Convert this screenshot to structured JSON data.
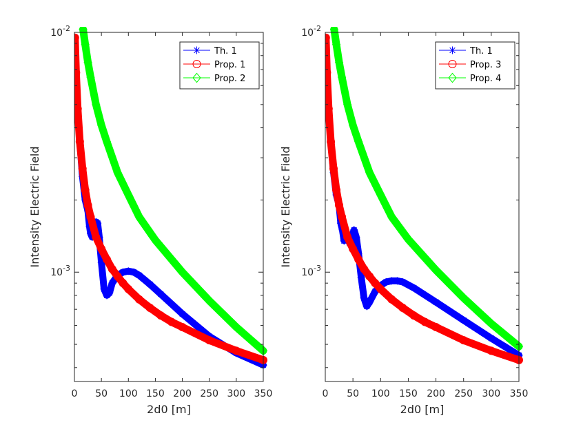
{
  "chart_data": [
    {
      "type": "line",
      "ylabel": "Intensity Electric Field",
      "xlabel": "2d0 [m]",
      "xlim": [
        0,
        350
      ],
      "ylim": [
        0.00035,
        0.01
      ],
      "yscale": "log",
      "xticks": [
        0,
        50,
        100,
        150,
        200,
        250,
        300,
        350
      ],
      "xtick_labels": [
        "0",
        "50",
        "100",
        "150",
        "200",
        "250",
        "300",
        "350"
      ],
      "ytick_labels": [
        {
          "value": 0.01,
          "base": "10",
          "exp": "-2"
        },
        {
          "value": 0.001,
          "base": "10",
          "exp": "-3"
        }
      ],
      "legend_placement": "top-right",
      "grid": false,
      "series": [
        {
          "name": "Th. 1",
          "color": "#0000ff",
          "marker": "asterisk",
          "x": [
            1,
            3,
            6,
            10,
            15,
            20,
            25,
            28,
            30,
            33,
            36,
            40,
            43,
            46,
            50,
            55,
            60,
            65,
            70,
            80,
            90,
            100,
            110,
            120,
            140,
            160,
            200,
            250,
            300,
            350
          ],
          "y": [
            0.0095,
            0.0068,
            0.0048,
            0.0035,
            0.0025,
            0.002,
            0.0018,
            0.00155,
            0.00145,
            0.0014,
            0.00155,
            0.00162,
            0.0016,
            0.0014,
            0.0011,
            0.00085,
            0.0008,
            0.00082,
            0.0009,
            0.00097,
            0.001,
            0.00101,
            0.001,
            0.00097,
            0.00089,
            0.00081,
            0.00067,
            0.00054,
            0.00046,
            0.00041
          ]
        },
        {
          "name": "Prop. 1",
          "color": "#ff0000",
          "marker": "circle",
          "x": [
            1,
            3,
            6,
            10,
            15,
            20,
            25,
            30,
            40,
            50,
            60,
            70,
            80,
            90,
            100,
            120,
            140,
            160,
            180,
            200,
            250,
            300,
            350
          ],
          "y": [
            0.0095,
            0.0068,
            0.0048,
            0.0035,
            0.0027,
            0.0022,
            0.0019,
            0.0017,
            0.0014,
            0.00125,
            0.00113,
            0.00103,
            0.00096,
            0.0009,
            0.00085,
            0.00077,
            0.00071,
            0.00066,
            0.00062,
            0.00059,
            0.00052,
            0.00047,
            0.00043
          ]
        },
        {
          "name": "Prop. 2",
          "color": "#00ff00",
          "marker": "diamond",
          "x": [
            16,
            20,
            25,
            30,
            40,
            50,
            60,
            80,
            100,
            120,
            150,
            200,
            250,
            300,
            350
          ],
          "y": [
            0.0103,
            0.0089,
            0.0075,
            0.0065,
            0.005,
            0.0041,
            0.0035,
            0.0026,
            0.0021,
            0.0017,
            0.00136,
            0.001,
            0.00076,
            0.00059,
            0.00047
          ]
        }
      ]
    },
    {
      "type": "line",
      "ylabel": "Intensity Electric Field",
      "xlabel": "2d0 [m]",
      "xlim": [
        0,
        350
      ],
      "ylim": [
        0.00035,
        0.01
      ],
      "yscale": "log",
      "xticks": [
        0,
        50,
        100,
        150,
        200,
        250,
        300,
        350
      ],
      "xtick_labels": [
        "0",
        "50",
        "100",
        "150",
        "200",
        "250",
        "300",
        "350"
      ],
      "ytick_labels": [
        {
          "value": 0.01,
          "base": "10",
          "exp": "-2"
        },
        {
          "value": 0.001,
          "base": "10",
          "exp": "-3"
        }
      ],
      "legend_placement": "top-right",
      "grid": false,
      "series": [
        {
          "name": "Th. 1",
          "color": "#0000ff",
          "marker": "asterisk",
          "x": [
            1,
            3,
            6,
            10,
            15,
            20,
            25,
            28,
            31,
            34,
            37,
            40,
            44,
            48,
            52,
            56,
            60,
            65,
            70,
            75,
            80,
            90,
            100,
            110,
            120,
            130,
            140,
            160,
            200,
            250,
            300,
            350
          ],
          "y": [
            0.0095,
            0.0068,
            0.0048,
            0.0035,
            0.0026,
            0.0021,
            0.0019,
            0.0016,
            0.0015,
            0.00135,
            0.00145,
            0.0014,
            0.00132,
            0.0014,
            0.0015,
            0.0014,
            0.0012,
            0.00095,
            0.00078,
            0.00072,
            0.00075,
            0.00083,
            0.00088,
            0.00091,
            0.00092,
            0.00092,
            0.00091,
            0.00086,
            0.00075,
            0.00063,
            0.00053,
            0.00045
          ]
        },
        {
          "name": "Prop. 3",
          "color": "#ff0000",
          "marker": "circle",
          "x": [
            1,
            3,
            6,
            10,
            15,
            20,
            25,
            30,
            40,
            50,
            60,
            70,
            80,
            90,
            100,
            120,
            140,
            160,
            180,
            200,
            250,
            300,
            350
          ],
          "y": [
            0.0095,
            0.0068,
            0.0048,
            0.0035,
            0.0027,
            0.0022,
            0.0019,
            0.0017,
            0.0014,
            0.00125,
            0.00113,
            0.00103,
            0.00096,
            0.0009,
            0.00085,
            0.00077,
            0.00071,
            0.00066,
            0.00062,
            0.00059,
            0.00052,
            0.00047,
            0.00043
          ]
        },
        {
          "name": "Prop. 4",
          "color": "#00ff00",
          "marker": "diamond",
          "x": [
            16,
            20,
            25,
            30,
            40,
            50,
            60,
            80,
            100,
            120,
            150,
            200,
            250,
            300,
            350
          ],
          "y": [
            0.0103,
            0.0089,
            0.0075,
            0.0065,
            0.005,
            0.0041,
            0.0035,
            0.0026,
            0.0021,
            0.0017,
            0.00137,
            0.00102,
            0.00078,
            0.00061,
            0.00049
          ]
        }
      ]
    }
  ]
}
